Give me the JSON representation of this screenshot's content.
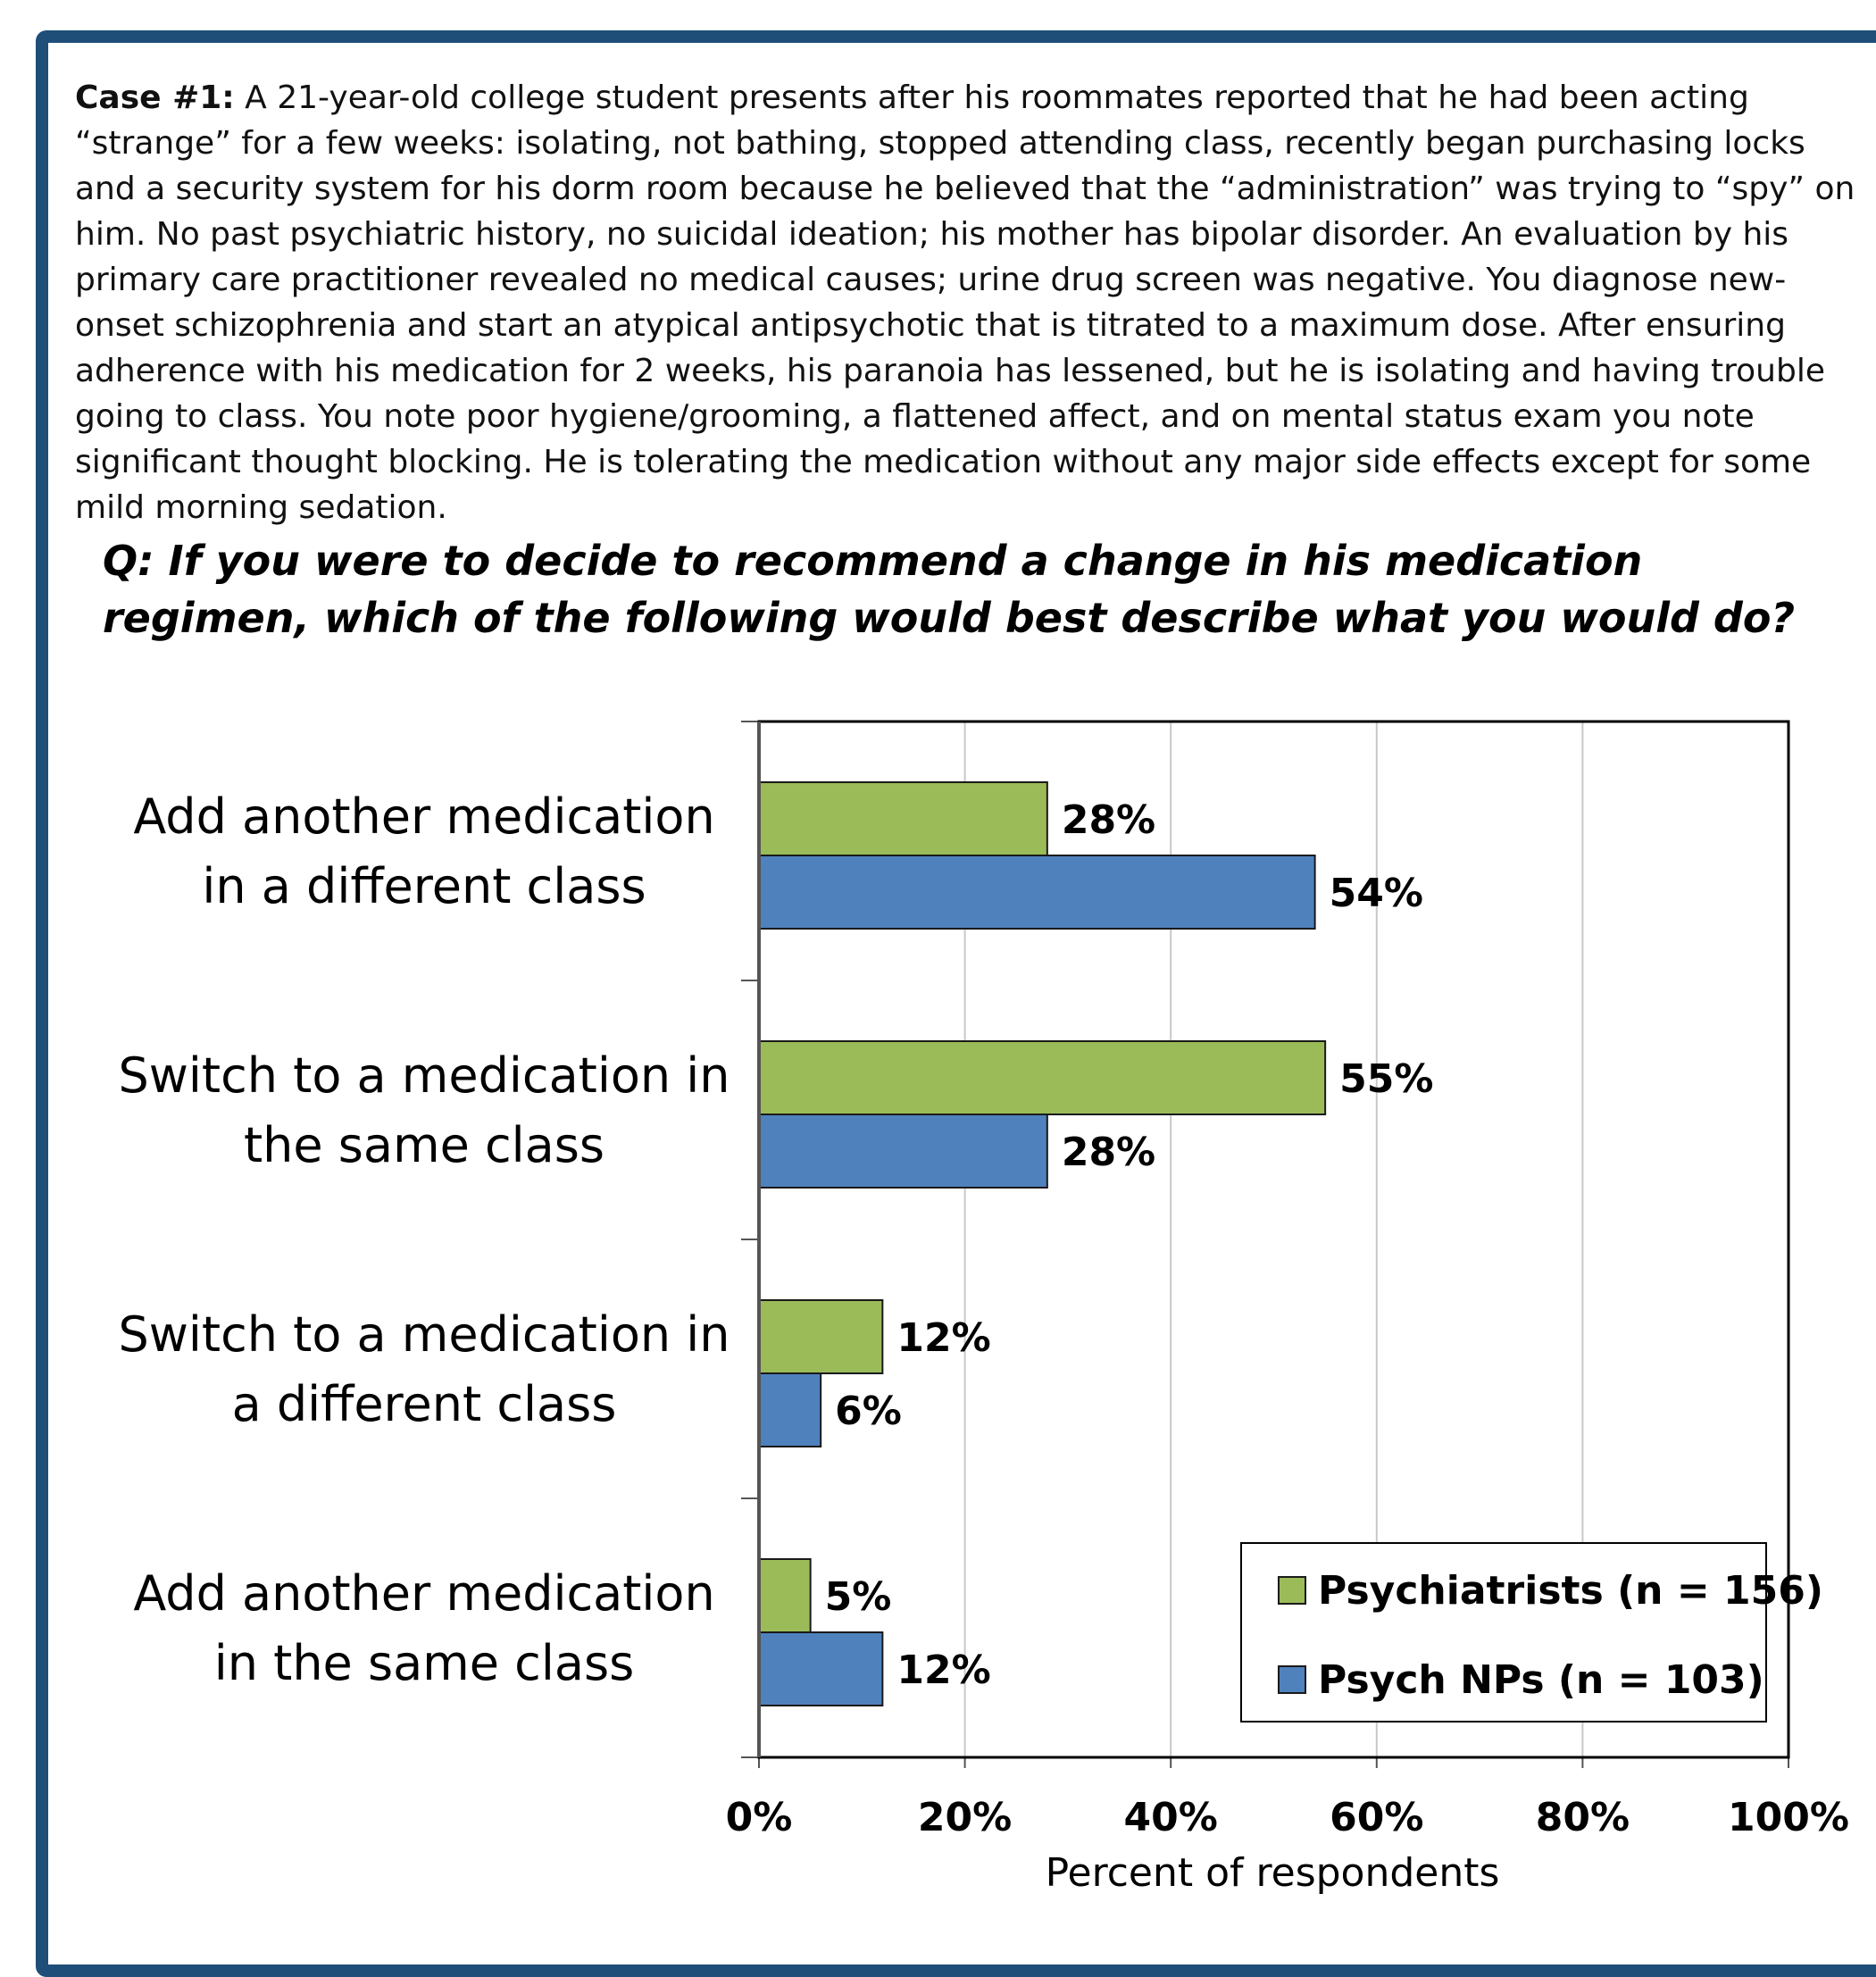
{
  "case": {
    "label": "Case #1:",
    "text": " A 21-year-old college student presents after his roommates reported that he had been acting “strange” for a few weeks: isolating, not bathing, stopped attending class, recently began purchasing locks and a security system for his dorm room because he believed that the “administration” was trying to “spy” on him. No past psychiatric history, no suicidal ideation; his mother has bipolar disorder. An evaluation by his primary care practitioner revealed no medical causes; urine drug screen was negative. You diagnose new-onset schizophrenia and start an atypical antipsychotic that is titrated to a maximum dose. After ensuring adherence with his medication for 2 weeks, his paranoia has lessened, but  he is isolating and having trouble going to class. You note poor hygiene/grooming, a flattened affect, and on mental status exam you note significant thought blocking. He is tolerating the medication without any major side effects except for some mild morning sedation."
  },
  "question": "Q: If you were to decide to recommend a change in his medication regimen, which of the following would best describe what you would do?",
  "colors": {
    "frame": "#1f4e79",
    "psychiatrists": "#9bbb59",
    "psych_nps": "#4f81bd",
    "gridline": "#c8c8c8"
  },
  "chart_data": {
    "type": "bar",
    "orientation": "horizontal",
    "categories": [
      [
        "Add another medication",
        "in a different class"
      ],
      [
        "Switch to a medication in",
        "the same class"
      ],
      [
        "Switch to a medication in",
        "a different class"
      ],
      [
        "Add another medication",
        "in the same class"
      ]
    ],
    "series": [
      {
        "name": "Psychiatrists (n = 156)",
        "values": [
          28,
          55,
          12,
          5
        ],
        "labels": [
          "28%",
          "55%",
          "12%",
          "5%"
        ]
      },
      {
        "name": "Psych NPs (n = 103)",
        "values": [
          54,
          28,
          6,
          12
        ],
        "labels": [
          "54%",
          "28%",
          "6%",
          "12%"
        ]
      }
    ],
    "xlabel": "Percent of respondents",
    "xlim": [
      0,
      100
    ],
    "xticks": [
      "0%",
      "20%",
      "40%",
      "60%",
      "80%",
      "100%"
    ],
    "grid": true,
    "legend": "bottom-right"
  }
}
